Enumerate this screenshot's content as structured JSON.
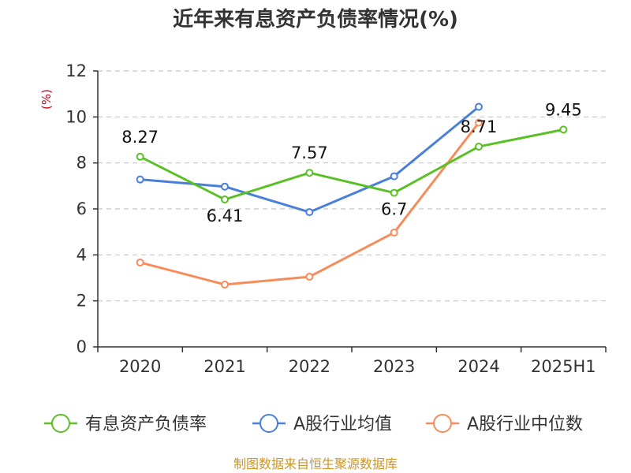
{
  "chart_data": {
    "type": "line",
    "title": "近年来有息资产负债率情况(%)",
    "ylabel": "(%)",
    "xlabel": "",
    "categories": [
      "2020",
      "2021",
      "2022",
      "2023",
      "2024",
      "2025H1"
    ],
    "ylim": [
      0,
      12
    ],
    "yticks": [
      0,
      2,
      4,
      6,
      8,
      10,
      12
    ],
    "grid": true,
    "legend_position": "bottom",
    "series": [
      {
        "name": "有息资产负债率",
        "color": "#5ac026",
        "values": [
          8.27,
          6.41,
          7.57,
          6.7,
          8.71,
          9.45
        ],
        "labels": [
          "8.27",
          "6.41",
          "7.57",
          "6.7",
          "8.71",
          "9.45"
        ]
      },
      {
        "name": "A股行业均值",
        "color": "#4a7fd9",
        "values": [
          7.28,
          6.97,
          5.86,
          7.42,
          10.44,
          null
        ]
      },
      {
        "name": "A股行业中位数",
        "color": "#f78c5b",
        "values": [
          3.67,
          2.71,
          3.05,
          4.97,
          9.75,
          null
        ]
      }
    ],
    "source": "制图数据来自恒生聚源数据库"
  }
}
